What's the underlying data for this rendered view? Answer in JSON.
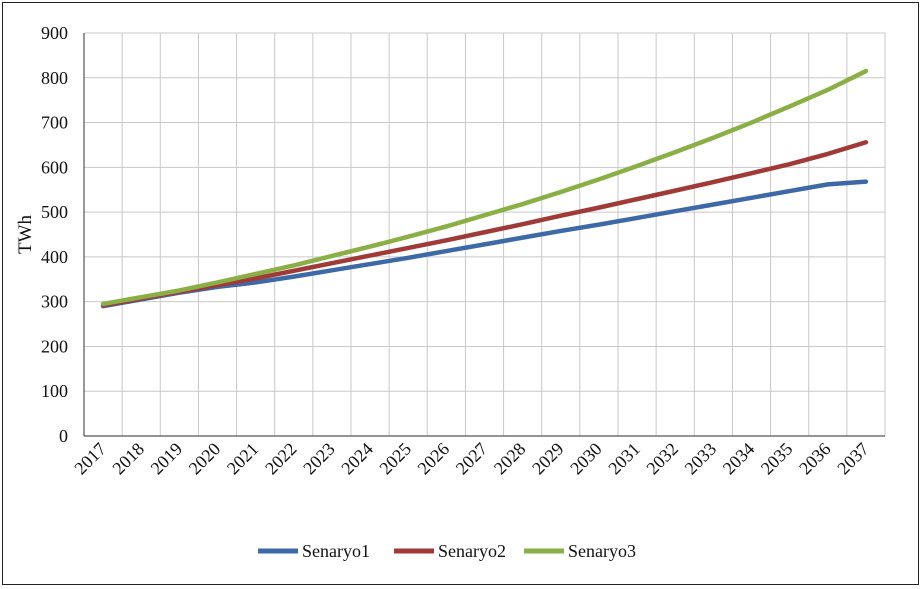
{
  "chart_data": {
    "type": "line",
    "title": "",
    "xlabel": "",
    "ylabel": "TWh",
    "ylim": [
      0,
      900
    ],
    "yticks": [
      0,
      100,
      200,
      300,
      400,
      500,
      600,
      700,
      800,
      900
    ],
    "grid": true,
    "legend_position": "bottom",
    "categories": [
      "2017",
      "2018",
      "2019",
      "2020",
      "2021",
      "2022",
      "2023",
      "2024",
      "2025",
      "2026",
      "2027",
      "2028",
      "2029",
      "2030",
      "2031",
      "2032",
      "2033",
      "2034",
      "2035",
      "2036",
      "2037"
    ],
    "series": [
      {
        "name": "Senaryo1",
        "color": "#3D6AA7",
        "values": [
          290,
          305,
          320,
          333,
          343,
          356,
          370,
          384,
          398,
          413,
          428,
          443,
          458,
          472,
          487,
          502,
          517,
          532,
          547,
          562,
          568
        ]
      },
      {
        "name": "Senaryo2",
        "color": "#A03A37",
        "values": [
          292,
          307,
          322,
          337,
          352,
          369,
          386,
          403,
          420,
          437,
          455,
          473,
          492,
          510,
          529,
          548,
          567,
          587,
          607,
          630,
          656
        ]
      },
      {
        "name": "Senaryo3",
        "color": "#8AAF45",
        "values": [
          295,
          310,
          325,
          343,
          362,
          381,
          402,
          423,
          445,
          468,
          493,
          518,
          545,
          573,
          603,
          634,
          666,
          700,
          736,
          773,
          815
        ]
      }
    ]
  }
}
